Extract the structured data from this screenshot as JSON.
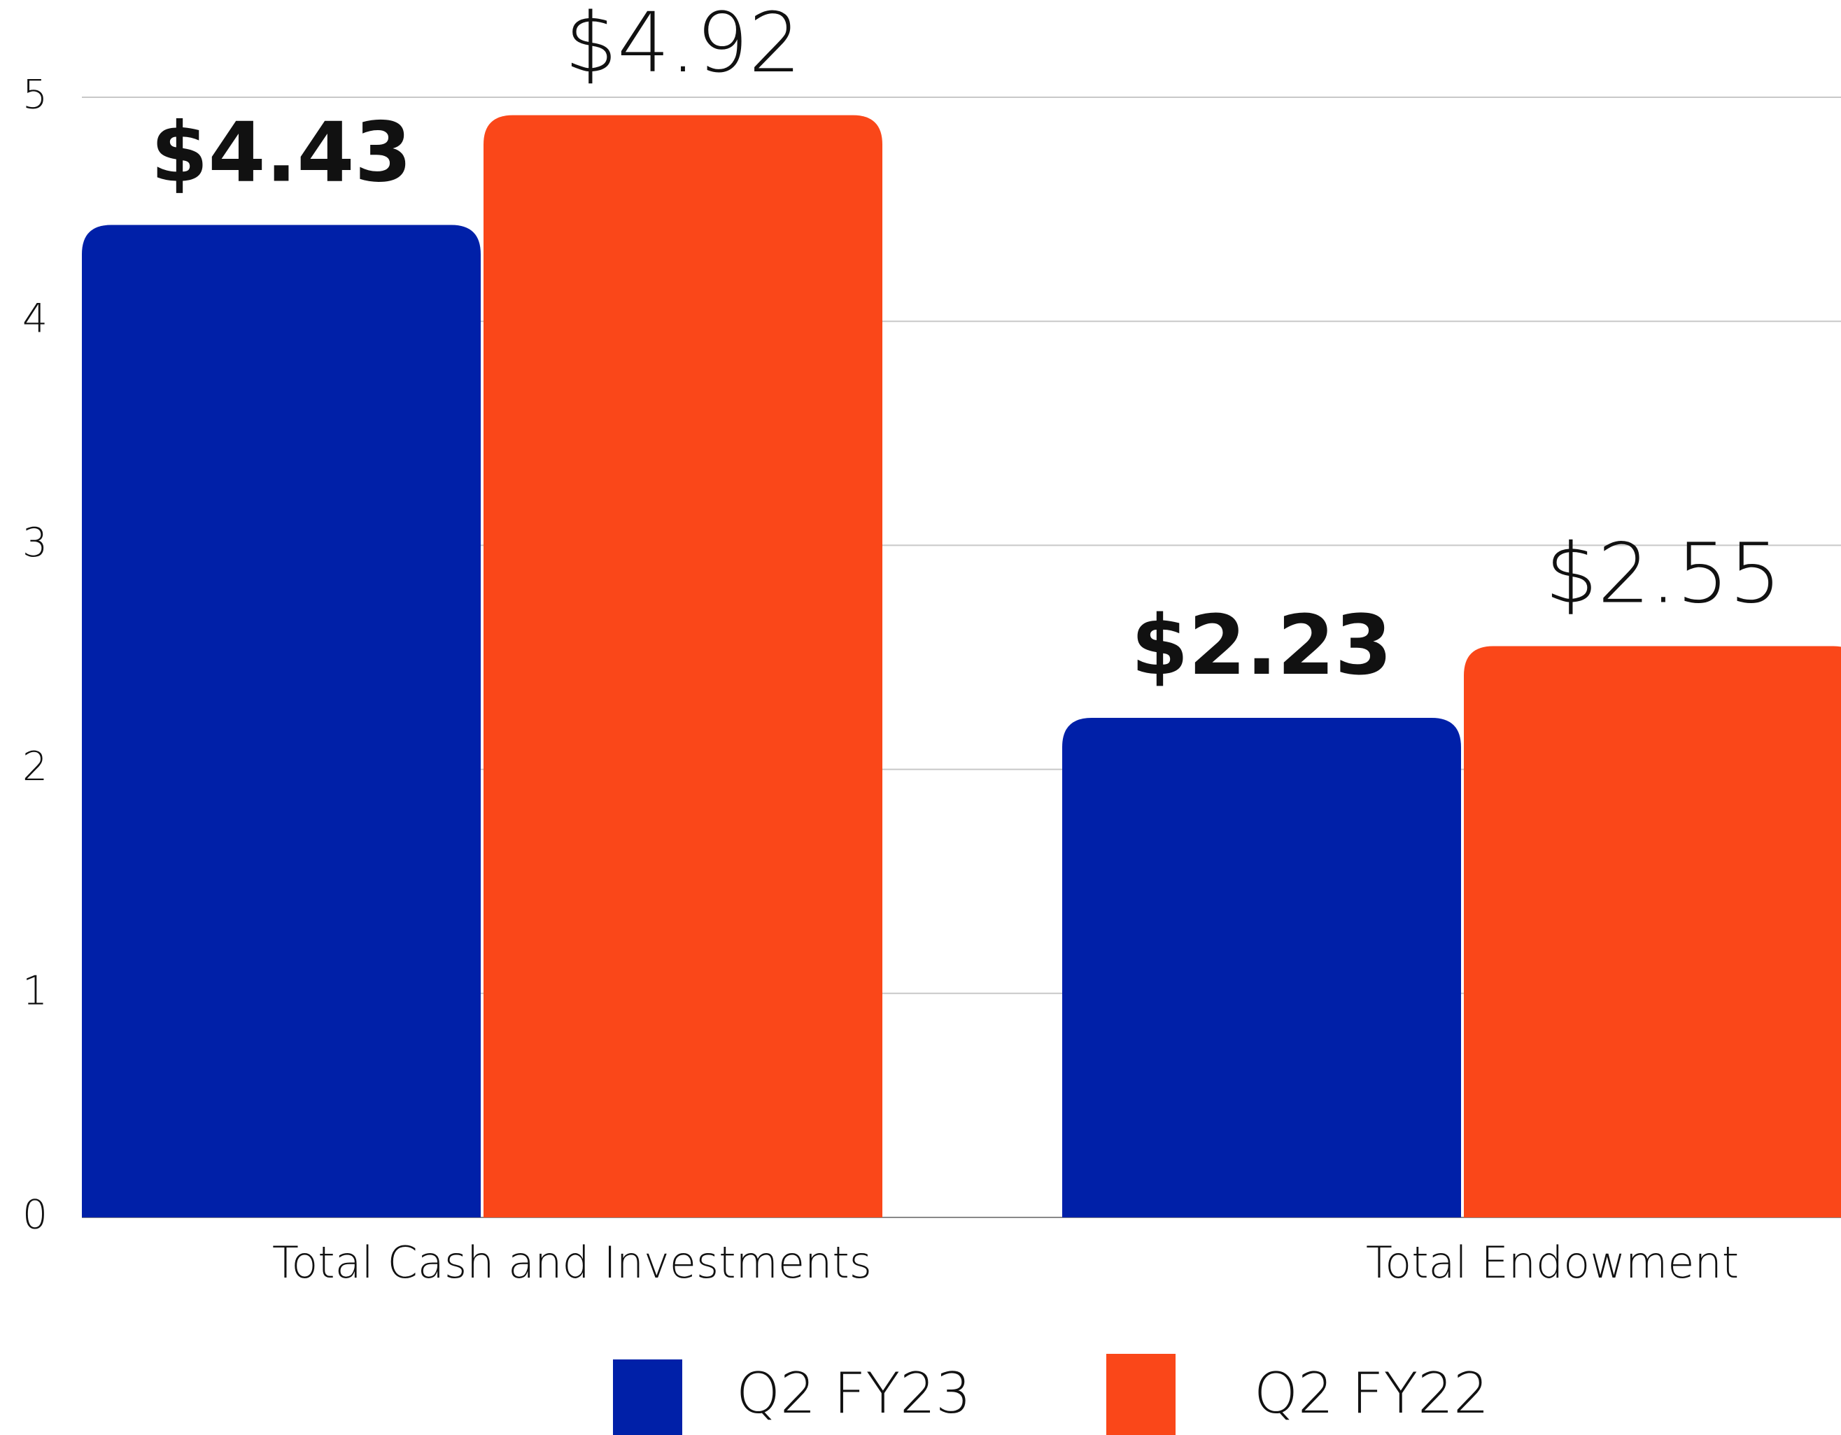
{
  "chart_data": {
    "type": "bar",
    "categories": [
      "Total Cash and Investments",
      "Total Endowment"
    ],
    "series": [
      {
        "name": "Q2 FY23",
        "color": "#0020a8",
        "values": [
          4.43,
          2.23
        ],
        "value_labels": [
          "$4.43",
          "$2.23"
        ]
      },
      {
        "name": "Q2 FY22",
        "color": "#fa4719",
        "values": [
          4.92,
          2.55
        ],
        "value_labels": [
          "$4.92",
          "$2.55"
        ]
      }
    ],
    "ylim": [
      0,
      5
    ],
    "yticks": [
      0,
      1,
      2,
      3,
      4,
      5
    ],
    "grid": true,
    "legend": "bottom"
  }
}
